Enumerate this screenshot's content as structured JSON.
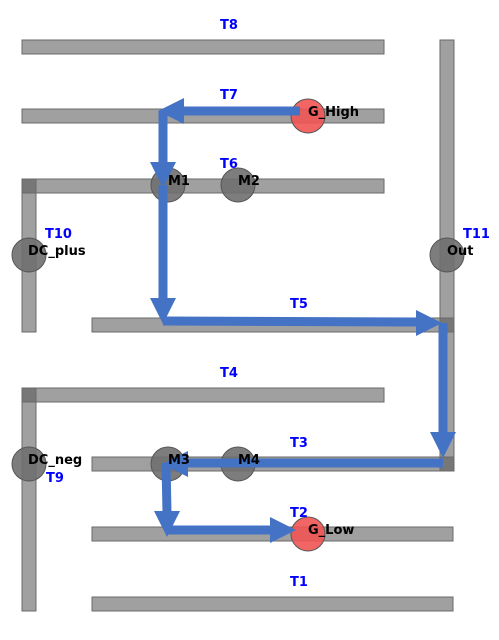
{
  "colors": {
    "track": "#a0a0a0",
    "track_stroke": "#6a6a6a",
    "joint": "#777777",
    "node_gray": "#6f6f6f",
    "node_red": "#f05454",
    "arrow": "#4472c4",
    "track_label": "#0000ff"
  },
  "tracks": {
    "t1": "T1",
    "t2": "T2",
    "t3": "T3",
    "t4": "T4",
    "t5": "T5",
    "t6": "T6",
    "t7": "T7",
    "t8": "T8",
    "t9": "T9",
    "t10": "T10",
    "t11": "T11"
  },
  "nodes": {
    "g_high": "G_High",
    "g_low": "G_Low",
    "m1": "M1",
    "m2": "M2",
    "m3": "M3",
    "m4": "M4",
    "dc_plus": "DC_plus",
    "dc_neg": "DC_neg",
    "out": "Out"
  }
}
